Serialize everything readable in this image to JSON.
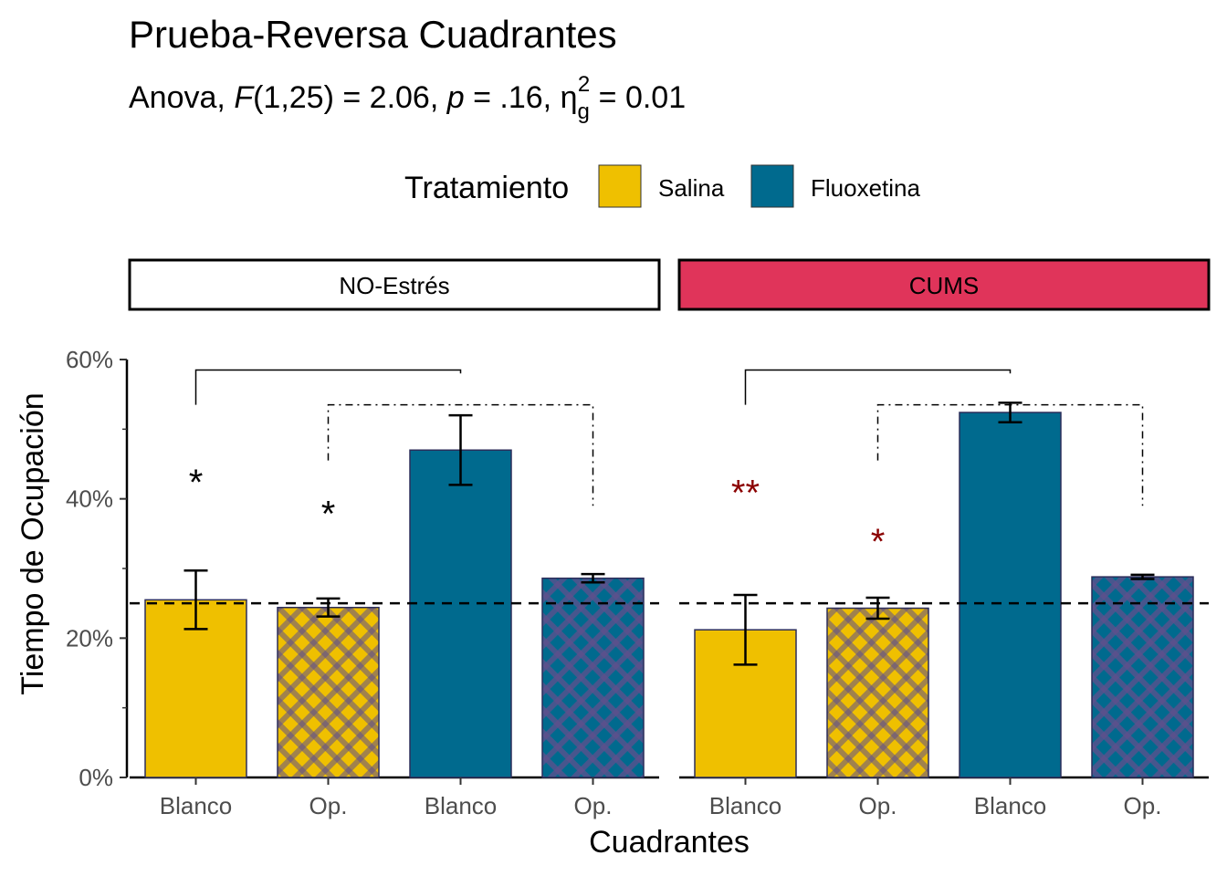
{
  "chart_data": {
    "type": "bar",
    "title": "Prueba-Reversa Cuadrantes",
    "subtitle": {
      "prefix": "Anova, ",
      "stat": "F",
      "df": "(1,25) = 2.06, ",
      "p_label": "p",
      "p_value": " = .16, ",
      "eta": "η",
      "eta_sub": "g",
      "eta_sup": "2",
      "eta_value": " = 0.01"
    },
    "legend": {
      "title": "Tratamiento",
      "position": "top",
      "entries": [
        {
          "label": "Salina",
          "color": "#efc000"
        },
        {
          "label": "Fluoxetina",
          "color": "#006a8e"
        }
      ]
    },
    "xlabel": "Cuadrantes",
    "ylabel": "Tiempo de Ocupación",
    "ylim": [
      0,
      60
    ],
    "yticks": [
      {
        "value": 0,
        "label": "0%"
      },
      {
        "value": 20,
        "label": "20%"
      },
      {
        "value": 40,
        "label": "40%"
      },
      {
        "value": 60,
        "label": "60%"
      }
    ],
    "ymin_minor": [
      10,
      30,
      50
    ],
    "reference_line": 25,
    "pattern_color": "#5e4f8c",
    "facets": [
      {
        "label": "NO-Estrés",
        "strip_color": "#ffffff",
        "bars": [
          {
            "category": "Blanco",
            "group": "Salina",
            "value": 25.5,
            "err_low": 21.3,
            "err_high": 29.7,
            "patterned": false,
            "color": "#efc000"
          },
          {
            "category": "Op.",
            "group": "Salina",
            "value": 24.4,
            "err_low": 23.1,
            "err_high": 25.7,
            "patterned": true,
            "color": "#efc000"
          },
          {
            "category": "Blanco",
            "group": "Fluoxetina",
            "value": 47.0,
            "err_low": 42.0,
            "err_high": 52.0,
            "patterned": false,
            "color": "#006a8e"
          },
          {
            "category": "Op.",
            "group": "Fluoxetina",
            "value": 28.6,
            "err_low": 28.0,
            "err_high": 29.2,
            "patterned": true,
            "color": "#006a8e"
          }
        ],
        "annotations": [
          {
            "bar": 0,
            "text": "*",
            "y": 43.5,
            "color": "#000000"
          },
          {
            "bar": 1,
            "text": "*",
            "y": 39.0,
            "color": "#000000"
          }
        ],
        "brackets": [
          {
            "from": 0,
            "to": 2,
            "y": 58.5,
            "drop_from": 53.5,
            "drop_to": 58.0,
            "style": "solid"
          },
          {
            "from": 1,
            "to": 3,
            "y": 53.5,
            "drop_from": 45.5,
            "drop_to": 39.0,
            "style": "dashdot"
          }
        ]
      },
      {
        "label": "CUMS",
        "strip_color": "#e0345a",
        "bars": [
          {
            "category": "Blanco",
            "group": "Salina",
            "value": 21.2,
            "err_low": 16.2,
            "err_high": 26.2,
            "patterned": false,
            "color": "#efc000"
          },
          {
            "category": "Op.",
            "group": "Salina",
            "value": 24.3,
            "err_low": 22.8,
            "err_high": 25.8,
            "patterned": true,
            "color": "#efc000"
          },
          {
            "category": "Blanco",
            "group": "Fluoxetina",
            "value": 52.4,
            "err_low": 51.0,
            "err_high": 53.8,
            "patterned": false,
            "color": "#006a8e"
          },
          {
            "category": "Op.",
            "group": "Fluoxetina",
            "value": 28.8,
            "err_low": 28.5,
            "err_high": 29.1,
            "patterned": true,
            "color": "#006a8e"
          }
        ],
        "annotations": [
          {
            "bar": 0,
            "text": "**",
            "y": 42.0,
            "color": "#8b0000"
          },
          {
            "bar": 1,
            "text": "*",
            "y": 35.0,
            "color": "#8b0000"
          }
        ],
        "brackets": [
          {
            "from": 0,
            "to": 2,
            "y": 58.5,
            "drop_from": 53.5,
            "drop_to": 58.0,
            "style": "solid"
          },
          {
            "from": 1,
            "to": 3,
            "y": 53.5,
            "drop_from": 45.5,
            "drop_to": 39.0,
            "style": "dashdot"
          }
        ]
      }
    ]
  }
}
